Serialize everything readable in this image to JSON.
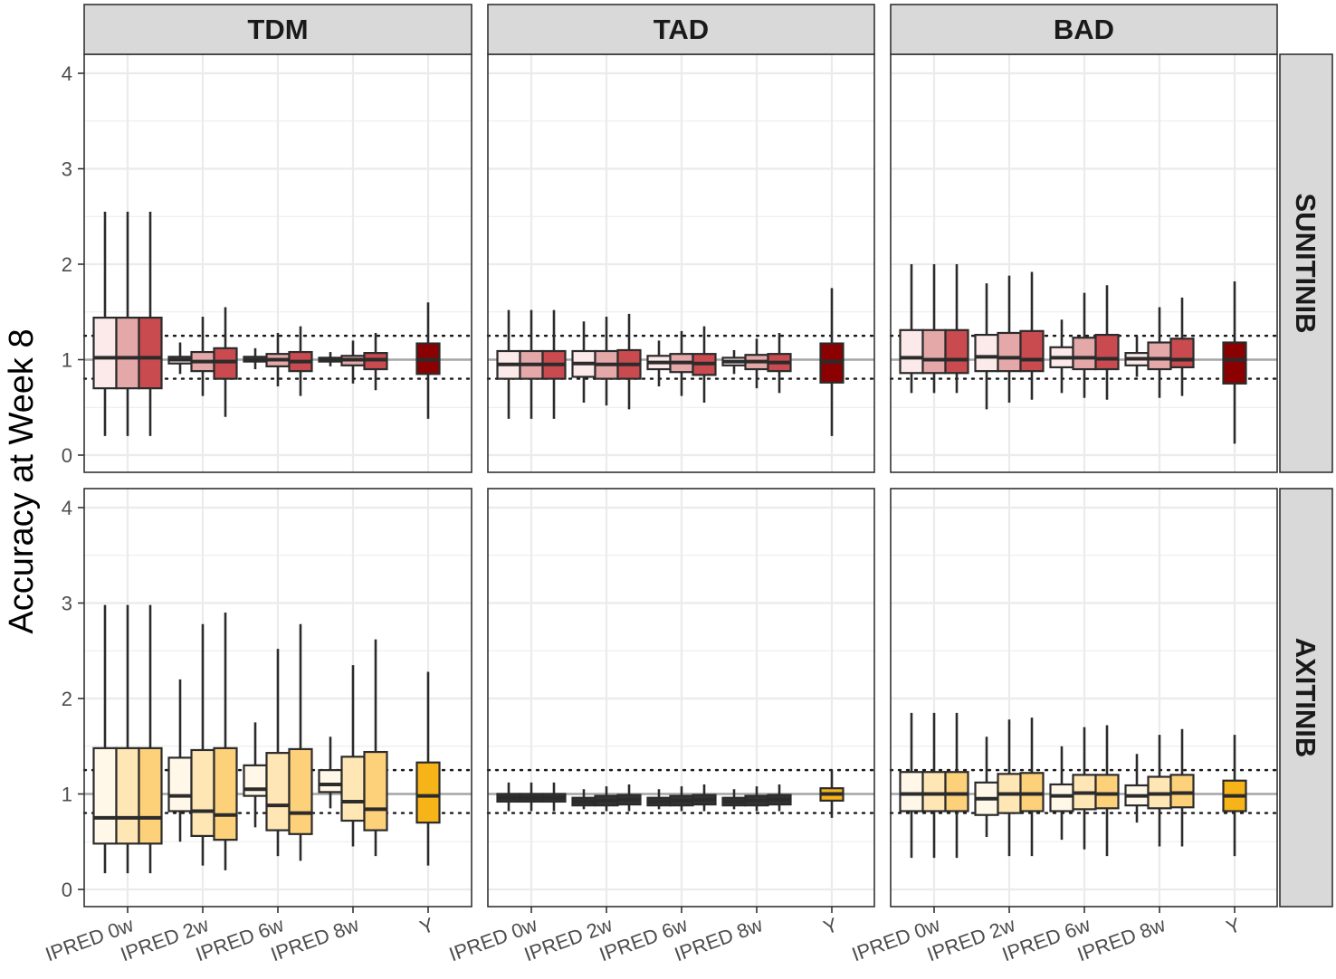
{
  "chart_data": {
    "type": "boxplot",
    "ylabel": "Accuracy at Week 8",
    "xlabel": "",
    "ylim": [
      -0.2,
      4.2
    ],
    "yticks": [
      0,
      1,
      2,
      3,
      4
    ],
    "reference_lines": {
      "solid": 1.0,
      "dotted": [
        0.8,
        1.25
      ]
    },
    "columns": [
      "TDM",
      "TAD",
      "BAD"
    ],
    "rows": [
      "SUNITINIB",
      "AXITINIB"
    ],
    "categories": [
      "IPRED 0w",
      "IPRED 2w",
      "IPRED 6w",
      "IPRED 8w",
      "Y"
    ],
    "colors": {
      "SUNITINIB": [
        "#fce9e9",
        "#e5a8a8",
        "#c94a4f",
        "#8b0000"
      ],
      "AXITINIB": [
        "#fff8e8",
        "#ffe6b5",
        "#fdd07a",
        "#f7b418"
      ],
      "TAD_AXITINIB": "#333333",
      "outline": "#2b2b2b",
      "median_line": "#2b2b2b",
      "grid": "#ebebeb",
      "ref_line": "#a6a6a6",
      "strip_bg": "#d9d9d9"
    },
    "panels": [
      {
        "column": "TDM",
        "row": "SUNITINIB",
        "groups": [
          [
            [
              0.2,
              0.7,
              1.02,
              1.44,
              2.55
            ],
            [
              0.2,
              0.7,
              1.02,
              1.44,
              2.55
            ],
            [
              0.2,
              0.7,
              1.02,
              1.44,
              2.55
            ]
          ],
          [
            [
              0.85,
              0.96,
              1.0,
              1.03,
              1.18
            ],
            [
              0.62,
              0.88,
              0.98,
              1.08,
              1.45
            ],
            [
              0.4,
              0.8,
              0.98,
              1.12,
              1.55
            ]
          ],
          [
            [
              0.9,
              0.98,
              1.0,
              1.03,
              1.12
            ],
            [
              0.72,
              0.93,
              1.0,
              1.06,
              1.28
            ],
            [
              0.62,
              0.88,
              0.98,
              1.08,
              1.35
            ]
          ],
          [
            [
              0.93,
              0.98,
              1.0,
              1.02,
              1.08
            ],
            [
              0.75,
              0.94,
              1.0,
              1.04,
              1.2
            ],
            [
              0.68,
              0.9,
              1.0,
              1.07,
              1.28
            ]
          ],
          [
            [
              0.38,
              0.85,
              1.0,
              1.17,
              1.6
            ]
          ]
        ]
      },
      {
        "column": "TAD",
        "row": "SUNITINIB",
        "groups": [
          [
            [
              0.38,
              0.8,
              0.95,
              1.09,
              1.52
            ],
            [
              0.38,
              0.8,
              0.95,
              1.09,
              1.52
            ],
            [
              0.38,
              0.8,
              0.95,
              1.09,
              1.52
            ]
          ],
          [
            [
              0.55,
              0.82,
              0.96,
              1.09,
              1.4
            ],
            [
              0.52,
              0.8,
              0.95,
              1.09,
              1.45
            ],
            [
              0.48,
              0.8,
              0.95,
              1.1,
              1.48
            ]
          ],
          [
            [
              0.72,
              0.9,
              0.97,
              1.04,
              1.2
            ],
            [
              0.62,
              0.87,
              0.97,
              1.06,
              1.3
            ],
            [
              0.55,
              0.84,
              0.96,
              1.06,
              1.35
            ]
          ],
          [
            [
              0.85,
              0.94,
              0.98,
              1.02,
              1.1
            ],
            [
              0.7,
              0.9,
              0.98,
              1.05,
              1.22
            ],
            [
              0.65,
              0.88,
              0.97,
              1.06,
              1.28
            ]
          ],
          [
            [
              0.2,
              0.76,
              0.98,
              1.17,
              1.75
            ]
          ]
        ]
      },
      {
        "column": "BAD",
        "row": "SUNITINIB",
        "groups": [
          [
            [
              0.65,
              0.86,
              1.02,
              1.31,
              2.0
            ],
            [
              0.65,
              0.86,
              1.0,
              1.31,
              2.0
            ],
            [
              0.65,
              0.86,
              1.0,
              1.31,
              2.0
            ]
          ],
          [
            [
              0.48,
              0.88,
              1.03,
              1.26,
              1.8
            ],
            [
              0.55,
              0.88,
              1.02,
              1.28,
              1.88
            ],
            [
              0.58,
              0.88,
              1.0,
              1.3,
              1.92
            ]
          ],
          [
            [
              0.65,
              0.92,
              1.02,
              1.13,
              1.42
            ],
            [
              0.6,
              0.9,
              1.02,
              1.23,
              1.7
            ],
            [
              0.58,
              0.9,
              1.01,
              1.26,
              1.78
            ]
          ],
          [
            [
              0.82,
              0.94,
              1.01,
              1.07,
              1.25
            ],
            [
              0.6,
              0.9,
              1.01,
              1.18,
              1.55
            ],
            [
              0.62,
              0.92,
              1.0,
              1.22,
              1.65
            ]
          ],
          [
            [
              0.12,
              0.75,
              1.0,
              1.18,
              1.82
            ]
          ]
        ]
      },
      {
        "column": "TDM",
        "row": "AXITINIB",
        "groups": [
          [
            [
              0.17,
              0.48,
              0.75,
              1.48,
              2.98
            ],
            [
              0.17,
              0.48,
              0.75,
              1.48,
              2.98
            ],
            [
              0.17,
              0.48,
              0.75,
              1.48,
              2.98
            ]
          ],
          [
            [
              0.5,
              0.82,
              0.98,
              1.38,
              2.2
            ],
            [
              0.25,
              0.56,
              0.82,
              1.46,
              2.78
            ],
            [
              0.2,
              0.52,
              0.78,
              1.48,
              2.9
            ]
          ],
          [
            [
              0.65,
              0.98,
              1.05,
              1.3,
              1.75
            ],
            [
              0.35,
              0.62,
              0.88,
              1.43,
              2.52
            ],
            [
              0.3,
              0.58,
              0.8,
              1.47,
              2.78
            ]
          ],
          [
            [
              0.85,
              1.02,
              1.1,
              1.25,
              1.6
            ],
            [
              0.45,
              0.72,
              0.92,
              1.39,
              2.35
            ],
            [
              0.35,
              0.62,
              0.84,
              1.44,
              2.62
            ]
          ],
          [
            [
              0.25,
              0.7,
              0.98,
              1.33,
              2.28
            ]
          ]
        ]
      },
      {
        "column": "TAD",
        "row": "AXITINIB",
        "groups": [
          [
            [
              0.82,
              0.92,
              0.96,
              1.0,
              1.12
            ],
            [
              0.82,
              0.92,
              0.96,
              1.0,
              1.12
            ],
            [
              0.82,
              0.92,
              0.96,
              1.0,
              1.12
            ]
          ],
          [
            [
              0.84,
              0.88,
              0.92,
              0.96,
              1.05
            ],
            [
              0.82,
              0.88,
              0.93,
              0.98,
              1.08
            ],
            [
              0.82,
              0.89,
              0.94,
              0.99,
              1.1
            ]
          ],
          [
            [
              0.84,
              0.88,
              0.92,
              0.96,
              1.05
            ],
            [
              0.82,
              0.88,
              0.93,
              0.98,
              1.08
            ],
            [
              0.82,
              0.89,
              0.94,
              0.99,
              1.1
            ]
          ],
          [
            [
              0.84,
              0.88,
              0.92,
              0.96,
              1.05
            ],
            [
              0.82,
              0.88,
              0.93,
              0.98,
              1.08
            ],
            [
              0.82,
              0.89,
              0.94,
              0.99,
              1.1
            ]
          ],
          [
            [
              0.75,
              0.93,
              1.0,
              1.06,
              1.25
            ]
          ]
        ]
      },
      {
        "column": "BAD",
        "row": "AXITINIB",
        "groups": [
          [
            [
              0.33,
              0.82,
              1.0,
              1.23,
              1.85
            ],
            [
              0.33,
              0.82,
              1.0,
              1.23,
              1.85
            ],
            [
              0.33,
              0.82,
              1.0,
              1.23,
              1.85
            ]
          ],
          [
            [
              0.55,
              0.78,
              0.95,
              1.12,
              1.6
            ],
            [
              0.35,
              0.8,
              1.0,
              1.21,
              1.78
            ],
            [
              0.35,
              0.82,
              1.0,
              1.22,
              1.8
            ]
          ],
          [
            [
              0.52,
              0.82,
              0.98,
              1.1,
              1.5
            ],
            [
              0.42,
              0.84,
              1.01,
              1.2,
              1.7
            ],
            [
              0.35,
              0.85,
              1.0,
              1.2,
              1.72
            ]
          ],
          [
            [
              0.7,
              0.88,
              0.98,
              1.09,
              1.42
            ],
            [
              0.45,
              0.85,
              1.0,
              1.18,
              1.62
            ],
            [
              0.45,
              0.86,
              1.01,
              1.2,
              1.68
            ]
          ],
          [
            [
              0.35,
              0.82,
              0.98,
              1.14,
              1.62
            ]
          ]
        ]
      }
    ]
  }
}
